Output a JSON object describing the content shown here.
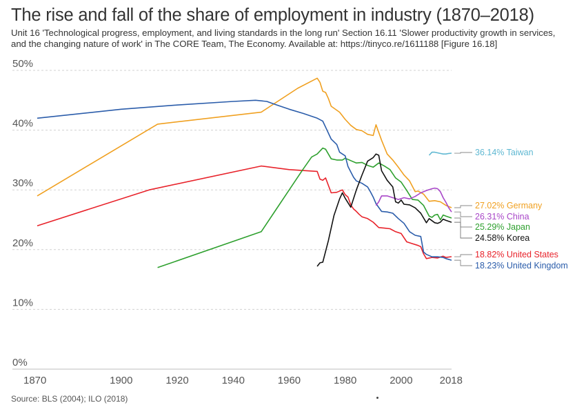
{
  "header": {
    "title": "The rise and fall of the share of employment in industry (1870–2018)",
    "subtitle": "Unit 16 'Technological progress, employment, and living standards in the long run' Section 16.11 'Slower productivity growth in services, and the changing nature of work' in The CORE Team, The Economy. Available at: https://tinyco.re/1611188 [Figure 16.18]"
  },
  "footer": {
    "source": "Source: BLS (2004); ILO (2018)"
  },
  "chart_data": {
    "type": "line",
    "title": "The rise and fall of the share of employment in industry (1870–2018)",
    "xlabel": "",
    "ylabel": "",
    "xlim": [
      1870,
      2018
    ],
    "ylim": [
      0,
      50
    ],
    "grid": "horizontal dashed",
    "x_ticks": [
      "1870",
      "1900",
      "1920",
      "1940",
      "1960",
      "1980",
      "2000",
      "2018"
    ],
    "x_tick_values": [
      1870,
      1900,
      1920,
      1940,
      1960,
      1980,
      2000,
      2018
    ],
    "y_ticks": [
      "0%",
      "10%",
      "20%",
      "30%",
      "40%",
      "50%"
    ],
    "y_tick_values": [
      0,
      10,
      20,
      30,
      40,
      50
    ],
    "series": [
      {
        "name": "Taiwan",
        "end_label": "36.14% Taiwan",
        "color": "#5fb8d2",
        "points": [
          [
            2010,
            35.8
          ],
          [
            2011,
            36.3
          ],
          [
            2012,
            36.3
          ],
          [
            2013,
            36.2
          ],
          [
            2014,
            36.1
          ],
          [
            2015,
            36.0
          ],
          [
            2016,
            36.0
          ],
          [
            2017,
            36.1
          ],
          [
            2018,
            36.14
          ]
        ]
      },
      {
        "name": "Germany",
        "end_label": "27.02% Germany",
        "color": "#f0a020",
        "points": [
          [
            1870,
            29
          ],
          [
            1913,
            41
          ],
          [
            1950,
            43
          ],
          [
            1963,
            47
          ],
          [
            1970,
            48.7
          ],
          [
            1971,
            48.0
          ],
          [
            1972,
            46.5
          ],
          [
            1973,
            46.3
          ],
          [
            1974,
            45.3
          ],
          [
            1975,
            44.0
          ],
          [
            1978,
            43.0
          ],
          [
            1980,
            41.8
          ],
          [
            1982,
            40.8
          ],
          [
            1984,
            40.1
          ],
          [
            1986,
            39.9
          ],
          [
            1988,
            39.3
          ],
          [
            1990,
            39.1
          ],
          [
            1991,
            40.9
          ],
          [
            1993,
            38.3
          ],
          [
            1995,
            36.0
          ],
          [
            1997,
            35.0
          ],
          [
            1999,
            33.8
          ],
          [
            2001,
            32.5
          ],
          [
            2003,
            31.5
          ],
          [
            2005,
            29.7
          ],
          [
            2006,
            29.8
          ],
          [
            2008,
            29.3
          ],
          [
            2010,
            28.1
          ],
          [
            2012,
            28.2
          ],
          [
            2014,
            28.0
          ],
          [
            2016,
            27.4
          ],
          [
            2018,
            27.02
          ]
        ]
      },
      {
        "name": "China",
        "end_label": "26.31% China",
        "color": "#a846c8",
        "points": [
          [
            1991,
            27.4
          ],
          [
            1992,
            28.0
          ],
          [
            1993,
            29.0
          ],
          [
            1995,
            29.0
          ],
          [
            1997,
            28.7
          ],
          [
            1999,
            28.4
          ],
          [
            2001,
            28.7
          ],
          [
            2003,
            28.5
          ],
          [
            2005,
            28.9
          ],
          [
            2007,
            29.5
          ],
          [
            2009,
            29.9
          ],
          [
            2011,
            30.2
          ],
          [
            2012,
            30.3
          ],
          [
            2013,
            30.2
          ],
          [
            2014,
            29.7
          ],
          [
            2015,
            28.7
          ],
          [
            2016,
            27.9
          ],
          [
            2017,
            27.0
          ],
          [
            2018,
            26.31
          ]
        ]
      },
      {
        "name": "Japan",
        "end_label": "25.29% Japan",
        "color": "#2ea02e",
        "points": [
          [
            1913,
            17
          ],
          [
            1950,
            23
          ],
          [
            1955,
            26.5
          ],
          [
            1960,
            30
          ],
          [
            1965,
            33.5
          ],
          [
            1968,
            35.5
          ],
          [
            1970,
            36.0
          ],
          [
            1972,
            37.0
          ],
          [
            1973,
            36.8
          ],
          [
            1975,
            35.2
          ],
          [
            1977,
            35.0
          ],
          [
            1979,
            35.0
          ],
          [
            1980,
            35.3
          ],
          [
            1982,
            34.9
          ],
          [
            1984,
            34.5
          ],
          [
            1986,
            34.6
          ],
          [
            1988,
            34.1
          ],
          [
            1990,
            33.8
          ],
          [
            1992,
            34.5
          ],
          [
            1994,
            34.0
          ],
          [
            1996,
            33.4
          ],
          [
            1998,
            32.0
          ],
          [
            2000,
            31.3
          ],
          [
            2002,
            29.9
          ],
          [
            2004,
            28.4
          ],
          [
            2006,
            28.3
          ],
          [
            2008,
            27.4
          ],
          [
            2010,
            25.6
          ],
          [
            2011,
            25.4
          ],
          [
            2012,
            25.8
          ],
          [
            2013,
            25.9
          ],
          [
            2014,
            25.0
          ],
          [
            2015,
            25.8
          ],
          [
            2016,
            25.6
          ],
          [
            2018,
            25.29
          ]
        ]
      },
      {
        "name": "Korea",
        "end_label": "24.58% Korea",
        "color": "#111111",
        "points": [
          [
            1970,
            17.2
          ],
          [
            1971,
            17.8
          ],
          [
            1972,
            17.9
          ],
          [
            1974,
            21.5
          ],
          [
            1976,
            25.7
          ],
          [
            1978,
            28.5
          ],
          [
            1979,
            29.5
          ],
          [
            1980,
            28.6
          ],
          [
            1982,
            27.1
          ],
          [
            1984,
            30.0
          ],
          [
            1986,
            32.5
          ],
          [
            1988,
            34.8
          ],
          [
            1990,
            35.4
          ],
          [
            1991,
            36.0
          ],
          [
            1992,
            35.8
          ],
          [
            1993,
            33.2
          ],
          [
            1995,
            31.6
          ],
          [
            1997,
            30.5
          ],
          [
            1998,
            28.0
          ],
          [
            1999,
            27.8
          ],
          [
            2000,
            28.3
          ],
          [
            2001,
            27.6
          ],
          [
            2003,
            27.5
          ],
          [
            2005,
            27.0
          ],
          [
            2007,
            26.1
          ],
          [
            2009,
            24.5
          ],
          [
            2010,
            25.2
          ],
          [
            2012,
            24.5
          ],
          [
            2013,
            24.4
          ],
          [
            2014,
            24.6
          ],
          [
            2015,
            25.1
          ],
          [
            2016,
            24.9
          ],
          [
            2018,
            24.58
          ]
        ]
      },
      {
        "name": "United States",
        "end_label": "18.82% United States",
        "color": "#e8222a",
        "points": [
          [
            1870,
            24
          ],
          [
            1910,
            30
          ],
          [
            1950,
            34
          ],
          [
            1960,
            33.4
          ],
          [
            1970,
            33.1
          ],
          [
            1971,
            31.8
          ],
          [
            1972,
            31.6
          ],
          [
            1973,
            32.0
          ],
          [
            1975,
            29.5
          ],
          [
            1977,
            29.6
          ],
          [
            1979,
            30.0
          ],
          [
            1980,
            29.2
          ],
          [
            1981,
            28.8
          ],
          [
            1982,
            27.5
          ],
          [
            1983,
            26.8
          ],
          [
            1984,
            26.4
          ],
          [
            1985,
            25.9
          ],
          [
            1986,
            25.5
          ],
          [
            1988,
            25.2
          ],
          [
            1990,
            24.6
          ],
          [
            1992,
            23.7
          ],
          [
            1994,
            23.6
          ],
          [
            1996,
            23.5
          ],
          [
            1998,
            23.0
          ],
          [
            2000,
            22.7
          ],
          [
            2002,
            21.3
          ],
          [
            2004,
            21.0
          ],
          [
            2006,
            20.7
          ],
          [
            2007,
            20.5
          ],
          [
            2008,
            19.3
          ],
          [
            2009,
            18.5
          ],
          [
            2011,
            18.7
          ],
          [
            2013,
            18.6
          ],
          [
            2015,
            18.9
          ],
          [
            2016,
            18.7
          ],
          [
            2018,
            18.82
          ]
        ]
      },
      {
        "name": "United Kingdom",
        "end_label": "18.23% United Kingdom",
        "color": "#2a5caa",
        "points": [
          [
            1870,
            42
          ],
          [
            1900,
            43.5
          ],
          [
            1920,
            44.2
          ],
          [
            1940,
            44.8
          ],
          [
            1948,
            45.0
          ],
          [
            1952,
            44.8
          ],
          [
            1955,
            44.3
          ],
          [
            1960,
            43.5
          ],
          [
            1965,
            42.8
          ],
          [
            1970,
            42.0
          ],
          [
            1972,
            41.5
          ],
          [
            1973,
            40.5
          ],
          [
            1975,
            38.5
          ],
          [
            1977,
            37.6
          ],
          [
            1978,
            36.3
          ],
          [
            1979,
            36.0
          ],
          [
            1980,
            35.7
          ],
          [
            1981,
            33.9
          ],
          [
            1983,
            32.1
          ],
          [
            1984,
            31.5
          ],
          [
            1986,
            31.1
          ],
          [
            1988,
            30.5
          ],
          [
            1989,
            29.7
          ],
          [
            1990,
            28.8
          ],
          [
            1991,
            27.7
          ],
          [
            1993,
            26.4
          ],
          [
            1995,
            26.3
          ],
          [
            1997,
            26.1
          ],
          [
            1999,
            25.2
          ],
          [
            2001,
            24.4
          ],
          [
            2003,
            23.0
          ],
          [
            2005,
            22.4
          ],
          [
            2007,
            22.2
          ],
          [
            2008,
            19.6
          ],
          [
            2009,
            19.2
          ],
          [
            2011,
            18.8
          ],
          [
            2013,
            18.8
          ],
          [
            2015,
            18.7
          ],
          [
            2016,
            18.5
          ],
          [
            2018,
            18.23
          ]
        ]
      }
    ]
  }
}
